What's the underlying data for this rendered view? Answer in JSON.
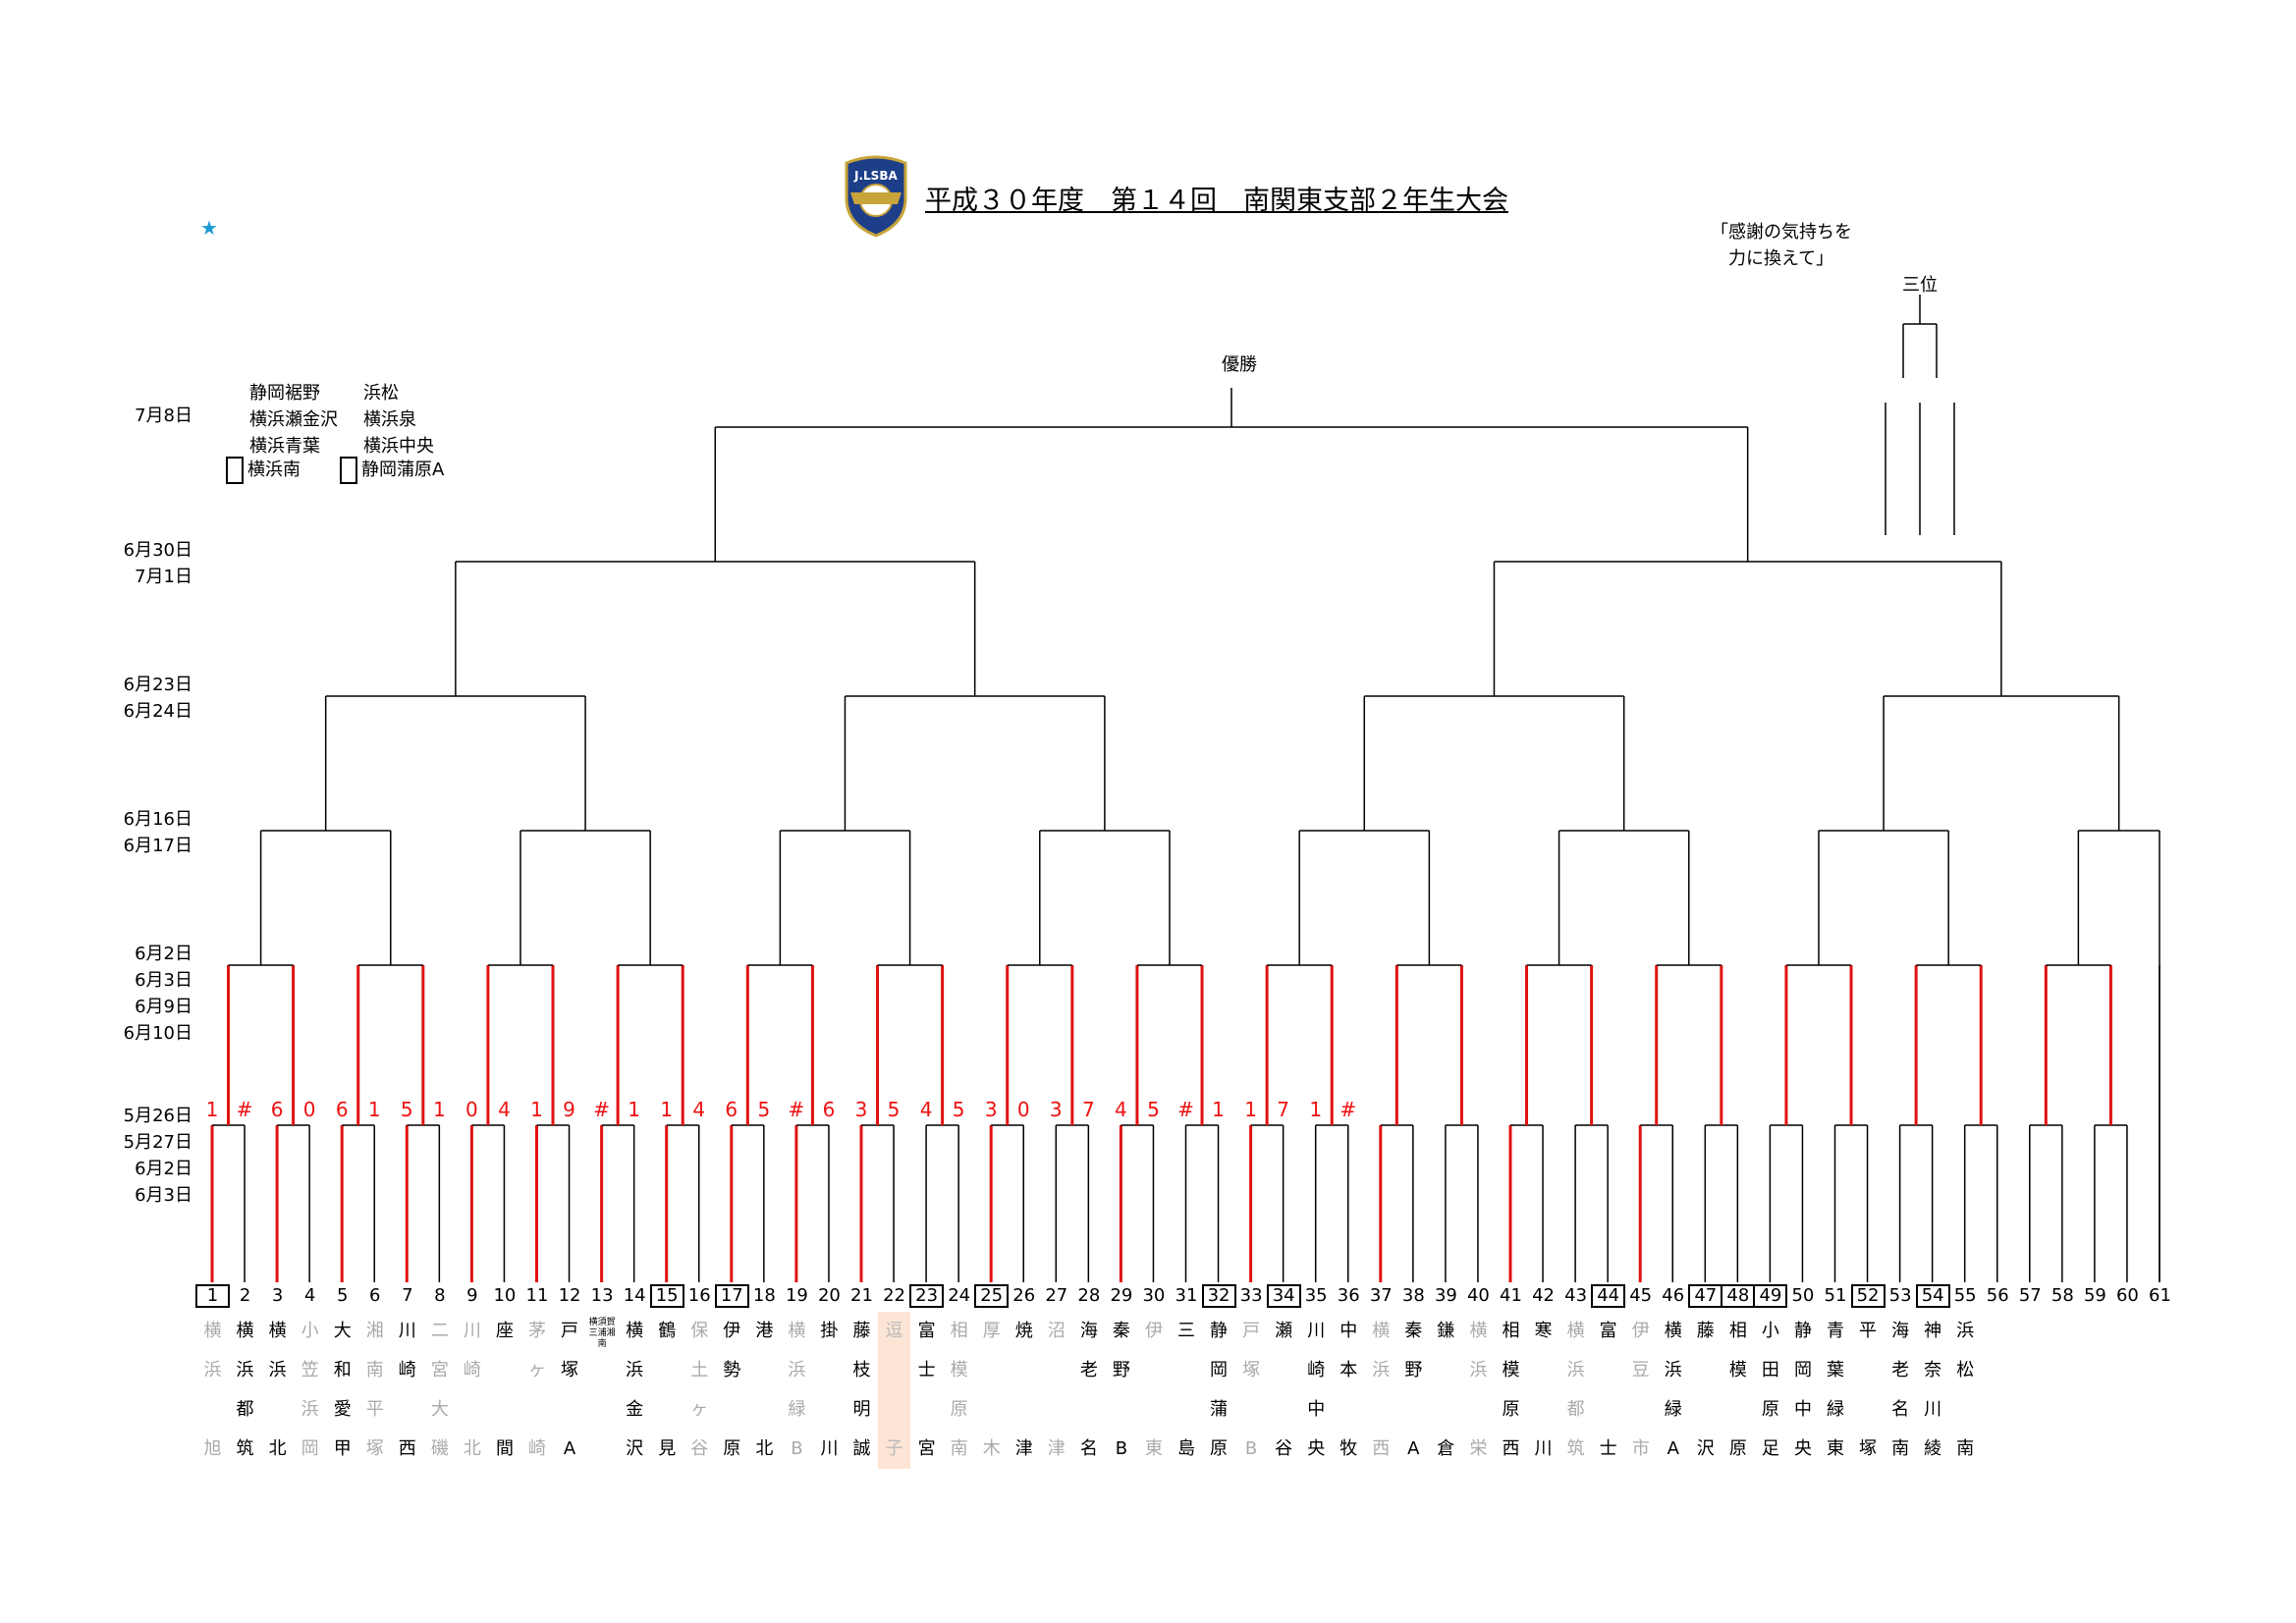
{
  "header": {
    "title": "平成３０年度　第１４回　南関東支部２年生大会",
    "logo_text": "J.LSBA",
    "star": "★"
  },
  "slogan": [
    "「感謝の気持ちを",
    "　力に換えて」"
  ],
  "labels": {
    "third": "三位",
    "champion": "優勝"
  },
  "dates": [
    {
      "lines": [
        "7月8日"
      ]
    },
    {
      "lines": [
        "6月30日",
        "7月1日"
      ]
    },
    {
      "lines": [
        "6月23日",
        "6月24日"
      ]
    },
    {
      "lines": [
        "6月16日",
        "6月17日"
      ]
    },
    {
      "lines": [
        "6月2日",
        "6月3日",
        "6月9日",
        "6月10日"
      ]
    },
    {
      "lines": [
        "5月26日",
        "5月27日",
        "6月2日",
        "6月3日"
      ]
    }
  ],
  "legend": {
    "col1": [
      "静岡裾野",
      "横浜瀬金沢",
      "横浜青葉",
      "横浜南"
    ],
    "col2": [
      "浜松",
      "横浜泉",
      "横浜中央",
      "静岡蒲原A"
    ]
  },
  "chart_data": {
    "type": "table",
    "rounds": 6,
    "colors": {
      "winner": "#e11111",
      "line": "#000000",
      "placeholder": "#aaaaaa",
      "highlight": "#fce5d4"
    },
    "entries": [
      {
        "no": "1",
        "team": "横浜旭",
        "box": true,
        "gray": true
      },
      {
        "no": "2",
        "team": "横浜都筑A"
      },
      {
        "no": "3",
        "team": "横浜北"
      },
      {
        "no": "4",
        "team": "小笠浜岡",
        "gray": true
      },
      {
        "no": "5",
        "team": "大和愛甲"
      },
      {
        "no": "6",
        "team": "湘南平塚北",
        "gray": true
      },
      {
        "no": "7",
        "team": "川崎西"
      },
      {
        "no": "8",
        "team": "二宮大磯",
        "gray": true
      },
      {
        "no": "9",
        "team": "川崎北",
        "gray": true
      },
      {
        "no": "10",
        "team": "座間"
      },
      {
        "no": "11",
        "team": "茅ヶ崎",
        "gray": true
      },
      {
        "no": "12",
        "team": "戸塚A"
      },
      {
        "no": "13",
        "team": "横須賀三浦湘南",
        "small": true
      },
      {
        "no": "14",
        "team": "横浜金沢"
      },
      {
        "no": "15",
        "team": "鶴見",
        "box": true
      },
      {
        "no": "16",
        "team": "保土ヶ谷",
        "gray": true
      },
      {
        "no": "17",
        "team": "伊勢原",
        "box": true
      },
      {
        "no": "18",
        "team": "港北"
      },
      {
        "no": "19",
        "team": "横浜緑B",
        "gray": true
      },
      {
        "no": "20",
        "team": "掛川"
      },
      {
        "no": "21",
        "team": "藤枝明誠"
      },
      {
        "no": "22",
        "team": "逗子",
        "peach": true
      },
      {
        "no": "23",
        "team": "富士宮",
        "box": true
      },
      {
        "no": "24",
        "team": "相模原南",
        "gray": true
      },
      {
        "no": "25",
        "team": "厚木",
        "box": true,
        "gray": true
      },
      {
        "no": "26",
        "team": "焼津"
      },
      {
        "no": "27",
        "team": "沼津",
        "gray": true
      },
      {
        "no": "28",
        "team": "海老名"
      },
      {
        "no": "29",
        "team": "秦野B"
      },
      {
        "no": "30",
        "team": "伊東",
        "gray": true
      },
      {
        "no": "31",
        "team": "三島"
      },
      {
        "no": "32",
        "team": "静岡蒲原B",
        "box": true
      },
      {
        "no": "33",
        "team": "戸塚B",
        "gray": true
      },
      {
        "no": "34",
        "team": "瀬谷",
        "box": true
      },
      {
        "no": "35",
        "team": "川崎中央"
      },
      {
        "no": "36",
        "team": "中本牧"
      },
      {
        "no": "37",
        "team": "横浜西",
        "gray": true
      },
      {
        "no": "38",
        "team": "秦野A"
      },
      {
        "no": "39",
        "team": "鎌倉"
      },
      {
        "no": "40",
        "team": "横浜栄",
        "gray": true
      },
      {
        "no": "41",
        "team": "相模原西"
      },
      {
        "no": "42",
        "team": "寒川"
      },
      {
        "no": "43",
        "team": "横浜都筑B",
        "gray": true
      },
      {
        "no": "44",
        "team": "富士",
        "box": true
      },
      {
        "no": "45",
        "team": "伊豆市",
        "gray": true
      },
      {
        "no": "46",
        "team": "横浜緑A"
      },
      {
        "no": "47",
        "team": "藤沢",
        "box": true
      },
      {
        "no": "48",
        "team": "相模原",
        "box": true
      },
      {
        "no": "49",
        "team": "小田原足柄",
        "box": true
      },
      {
        "no": "50",
        "team": "静岡中央"
      },
      {
        "no": "51",
        "team": "青葉緑東"
      },
      {
        "no": "52",
        "team": "平塚",
        "box": true
      },
      {
        "no": "53",
        "team": "海老名南"
      },
      {
        "no": "54",
        "team": "神奈川綾瀬",
        "box": true
      },
      {
        "no": "55",
        "team": "浜松南"
      },
      {
        "no": "56",
        "team": ""
      },
      {
        "no": "57",
        "team": ""
      },
      {
        "no": "58",
        "team": ""
      },
      {
        "no": "59",
        "team": ""
      },
      {
        "no": "60",
        "team": ""
      },
      {
        "no": "61",
        "team": ""
      }
    ],
    "first_round_scores": [
      "1",
      "#",
      "6",
      "0",
      "6",
      "1",
      "5",
      "1",
      "0",
      "4",
      "1",
      "9",
      "#",
      "1",
      "1",
      "4",
      "6",
      "5",
      "#",
      "6",
      "3",
      "5",
      "4",
      "5",
      "3",
      "0",
      "3",
      "7",
      "4",
      "5",
      "#",
      "1",
      "1",
      "7",
      "1",
      "#"
    ]
  }
}
